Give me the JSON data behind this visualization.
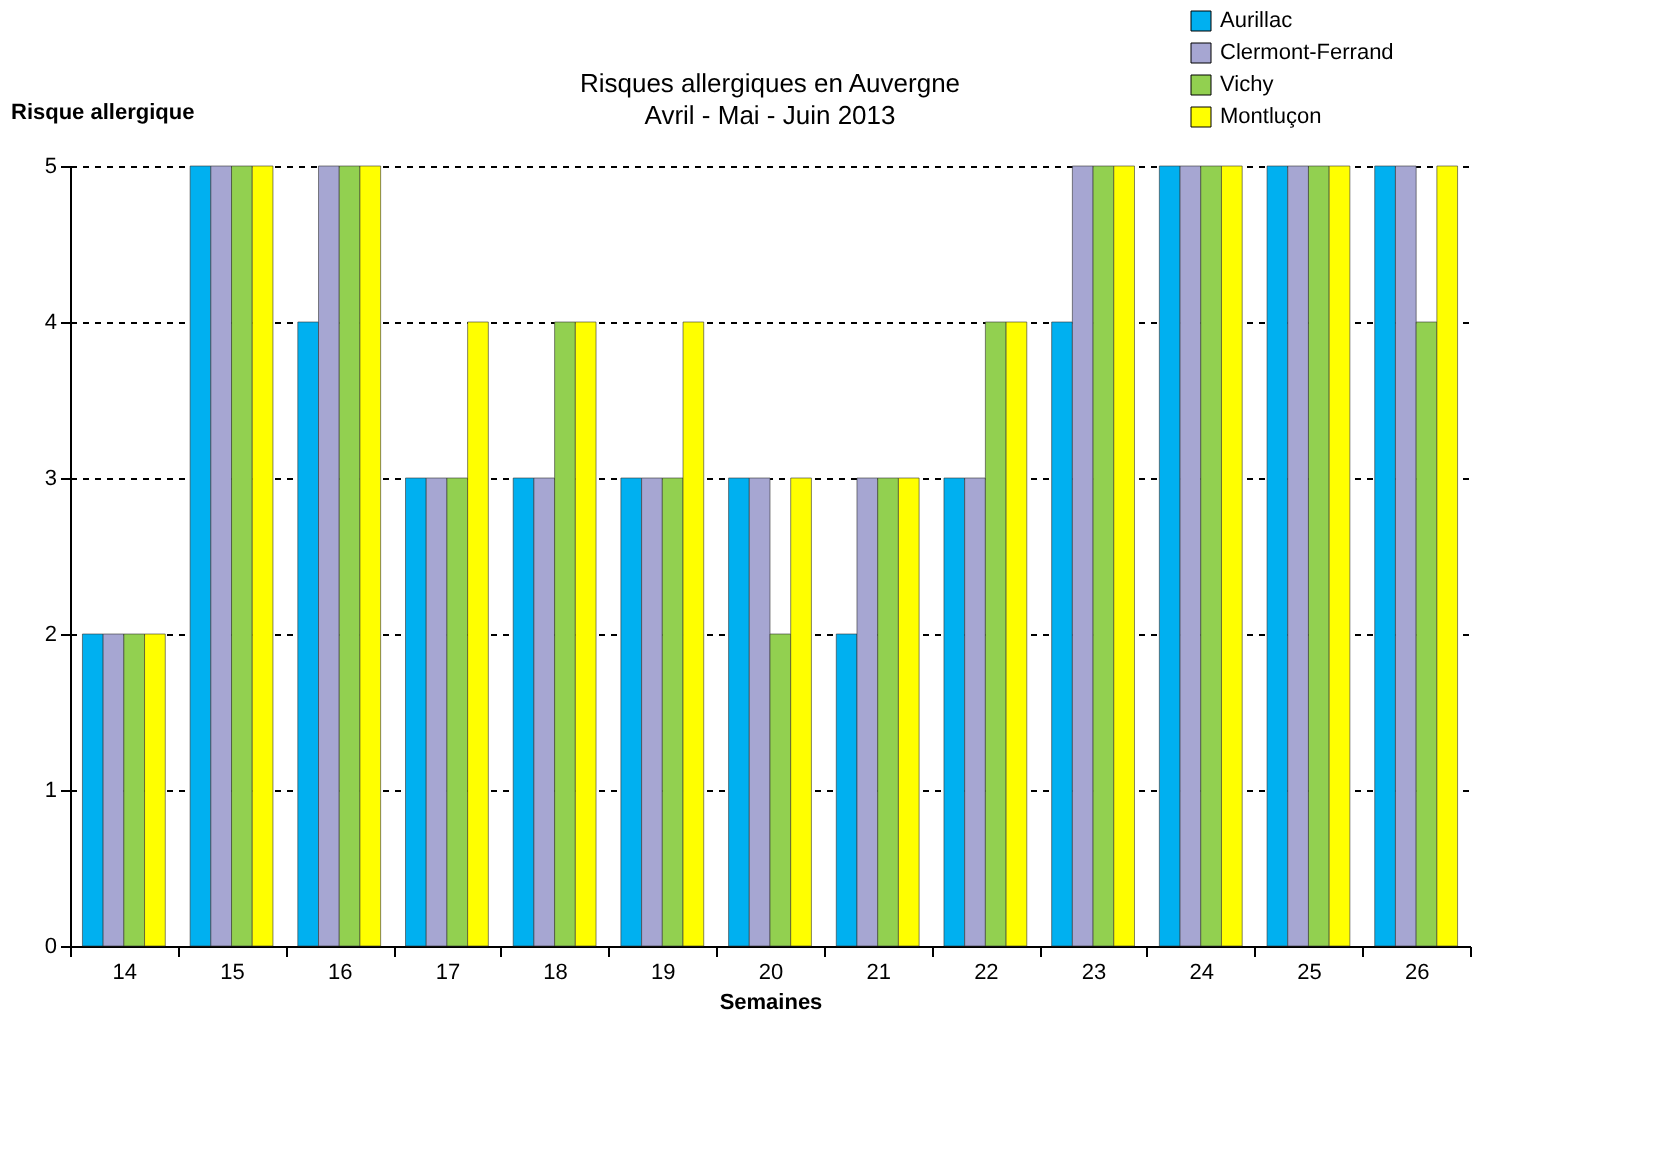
{
  "chart_data": {
    "type": "bar",
    "title": "Risques allergiques en Auvergne",
    "subtitle": "Avril - Mai - Juin 2013",
    "xlabel": "Semaines",
    "ylabel": "Risque allergique",
    "categories": [
      "14",
      "15",
      "16",
      "17",
      "18",
      "19",
      "20",
      "21",
      "22",
      "23",
      "24",
      "25",
      "26"
    ],
    "series": [
      {
        "name": "Aurillac",
        "color": "#00b0f0",
        "values": [
          2,
          5,
          4,
          3,
          3,
          3,
          3,
          2,
          3,
          4,
          5,
          5,
          5
        ]
      },
      {
        "name": "Clermont-Ferrand",
        "color": "#a6a6d2",
        "values": [
          2,
          5,
          5,
          3,
          3,
          3,
          3,
          3,
          3,
          5,
          5,
          5,
          5
        ]
      },
      {
        "name": "Vichy",
        "color": "#92d050",
        "values": [
          2,
          5,
          5,
          3,
          4,
          3,
          2,
          3,
          4,
          5,
          5,
          5,
          4
        ]
      },
      {
        "name": "Montluçon",
        "color": "#ffff00",
        "values": [
          2,
          5,
          5,
          4,
          4,
          4,
          3,
          3,
          4,
          5,
          5,
          5,
          5
        ]
      }
    ],
    "ylim": [
      0,
      5
    ],
    "yticks": [
      0,
      1,
      2,
      3,
      4,
      5
    ],
    "grid": "y",
    "legend": "top right"
  }
}
